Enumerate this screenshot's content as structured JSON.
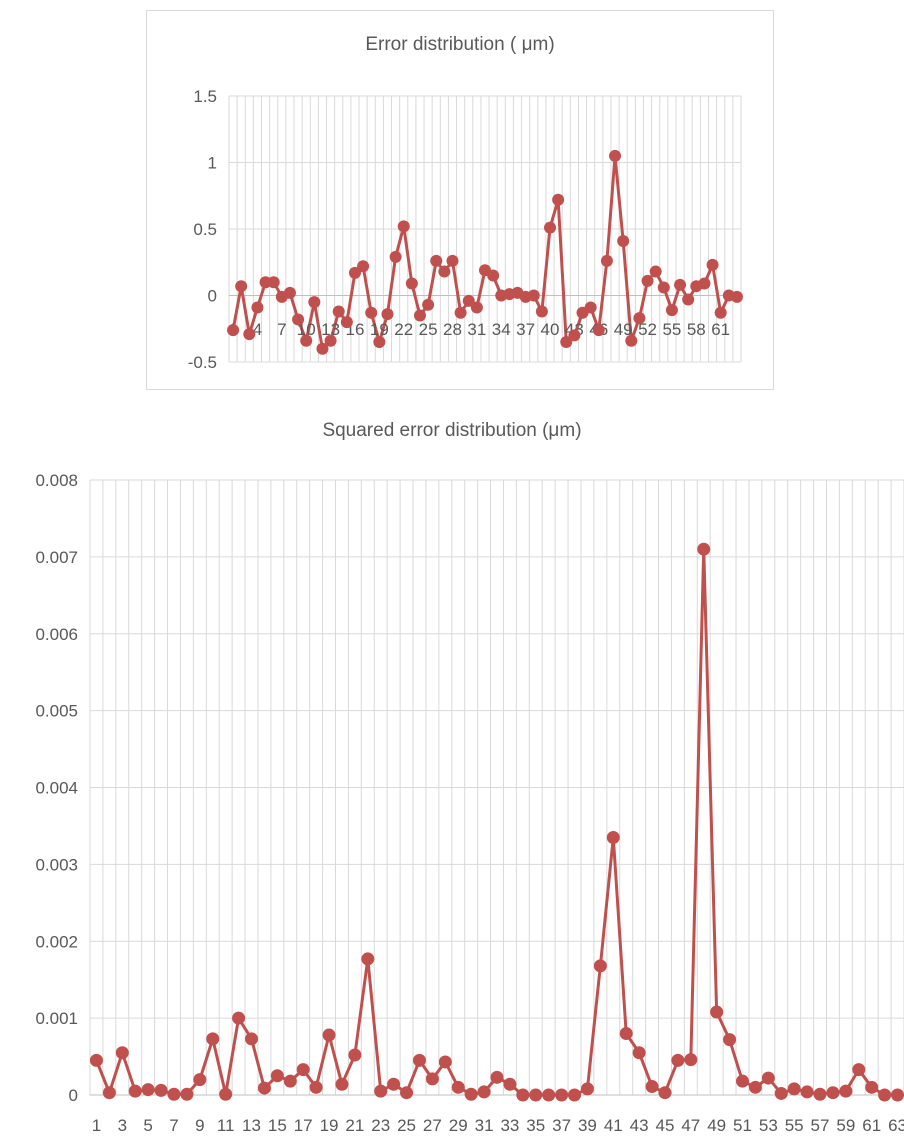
{
  "chart_data": [
    {
      "type": "line",
      "title": "Error distribution ( μm)",
      "ylim": [
        -0.5,
        1.5
      ],
      "y_ticks": [
        "1.5",
        "1",
        "0.5",
        "0",
        "-0.5"
      ],
      "x_tick_labels": [
        "1",
        "4",
        "7",
        "10",
        "13",
        "16",
        "19",
        "22",
        "25",
        "28",
        "31",
        "34",
        "37",
        "40",
        "43",
        "46",
        "49",
        "52",
        "55",
        "58",
        "61"
      ],
      "x": [
        1,
        2,
        3,
        4,
        5,
        6,
        7,
        8,
        9,
        10,
        11,
        12,
        13,
        14,
        15,
        16,
        17,
        18,
        19,
        20,
        21,
        22,
        23,
        24,
        25,
        26,
        27,
        28,
        29,
        30,
        31,
        32,
        33,
        34,
        35,
        36,
        37,
        38,
        39,
        40,
        41,
        42,
        43,
        44,
        45,
        46,
        47,
        48,
        49,
        50,
        51,
        52,
        53,
        54,
        55,
        56,
        57,
        58,
        59,
        60,
        61,
        62,
        63
      ],
      "values": [
        -0.26,
        0.07,
        -0.29,
        -0.09,
        0.1,
        0.1,
        -0.01,
        0.02,
        -0.18,
        -0.34,
        -0.05,
        -0.4,
        -0.34,
        -0.12,
        -0.2,
        0.17,
        0.22,
        -0.13,
        -0.35,
        -0.14,
        0.29,
        0.52,
        0.09,
        -0.15,
        -0.07,
        0.26,
        0.18,
        0.26,
        -0.13,
        -0.04,
        -0.09,
        0.19,
        0.15,
        0.0,
        0.01,
        0.02,
        -0.01,
        0.0,
        -0.12,
        0.51,
        0.72,
        -0.35,
        -0.3,
        -0.13,
        -0.09,
        -0.26,
        0.26,
        1.05,
        0.41,
        -0.34,
        -0.17,
        0.11,
        0.18,
        0.06,
        -0.11,
        0.08,
        -0.03,
        0.07,
        0.09,
        0.23,
        -0.13,
        0.0,
        -0.01
      ],
      "grid": true,
      "legend": false,
      "color": "#c0504d"
    },
    {
      "type": "line",
      "title": "Squared error distribution (μm)",
      "ylim": [
        0,
        0.008
      ],
      "y_ticks": [
        "0.008",
        "0.007",
        "0.006",
        "0.005",
        "0.004",
        "0.003",
        "0.002",
        "0.001",
        "0"
      ],
      "x_tick_labels": [
        "1",
        "3",
        "5",
        "7",
        "9",
        "11",
        "13",
        "15",
        "17",
        "19",
        "21",
        "23",
        "25",
        "27",
        "29",
        "31",
        "33",
        "35",
        "37",
        "39",
        "41",
        "43",
        "45",
        "47",
        "49",
        "51",
        "53",
        "55",
        "57",
        "59",
        "61",
        "63"
      ],
      "x": [
        1,
        2,
        3,
        4,
        5,
        6,
        7,
        8,
        9,
        10,
        11,
        12,
        13,
        14,
        15,
        16,
        17,
        18,
        19,
        20,
        21,
        22,
        23,
        24,
        25,
        26,
        27,
        28,
        29,
        30,
        31,
        32,
        33,
        34,
        35,
        36,
        37,
        38,
        39,
        40,
        41,
        42,
        43,
        44,
        45,
        46,
        47,
        48,
        49,
        50,
        51,
        52,
        53,
        54,
        55,
        56,
        57,
        58,
        59,
        60,
        61,
        62,
        63
      ],
      "values": [
        0.00045,
        3e-05,
        0.00055,
        5e-05,
        7e-05,
        6e-05,
        1e-05,
        1e-05,
        0.0002,
        0.00073,
        1e-05,
        0.001,
        0.00073,
        9e-05,
        0.00025,
        0.00018,
        0.00033,
        0.0001,
        0.00078,
        0.00014,
        0.00052,
        0.00177,
        5e-05,
        0.00014,
        3e-05,
        0.00045,
        0.00021,
        0.00043,
        0.0001,
        1e-05,
        4e-05,
        0.00023,
        0.00014,
        0.0,
        0.0,
        0.0,
        0.0,
        0.0,
        8e-05,
        0.00168,
        0.00335,
        0.0008,
        0.00055,
        0.00011,
        3e-05,
        0.00045,
        0.00046,
        0.0071,
        0.00108,
        0.00072,
        0.00018,
        0.0001,
        0.00022,
        2e-05,
        8e-05,
        4e-05,
        1e-05,
        3e-05,
        5e-05,
        0.00033,
        0.0001,
        0.0,
        0.0
      ],
      "grid": true,
      "legend": false,
      "color": "#c0504d"
    }
  ]
}
